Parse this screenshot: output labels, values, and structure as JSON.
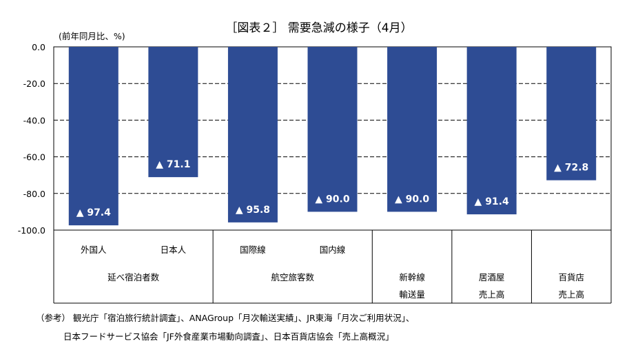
{
  "title": "［図表２］ 需要急減の様子（4月）",
  "unit_label": "(前年同月比、%)",
  "y_ticks": [
    "0.0",
    "-20.0",
    "-40.0",
    "-60.0",
    "-80.0",
    "-100.0"
  ],
  "chart_data": {
    "type": "bar",
    "categories": [
      "外国人",
      "日本人",
      "国際線",
      "国内線",
      "新幹線輸送量",
      "居酒屋売上高",
      "百貨店売上高"
    ],
    "values": [
      -97.4,
      -71.1,
      -95.8,
      -90.0,
      -90.0,
      -91.4,
      -72.8
    ],
    "data_labels": [
      "▲ 97.4",
      "▲ 71.1",
      "▲ 95.8",
      "▲ 90.0",
      "▲ 90.0",
      "▲ 91.4",
      "▲ 72.8"
    ],
    "groups": [
      {
        "label": "延べ宿泊者数",
        "lines": [
          "延べ宿泊者数"
        ]
      },
      {
        "label": "航空旅客数",
        "lines": [
          "航空旅客数"
        ]
      },
      {
        "label": "新幹線輸送量",
        "lines": [
          "新幹線",
          "輸送量"
        ]
      },
      {
        "label": "居酒屋売上高",
        "lines": [
          "居酒屋",
          "売上高"
        ]
      },
      {
        "label": "百貨店売上高",
        "lines": [
          "百貨店",
          "売上高"
        ]
      }
    ],
    "sub_categories": [
      "外国人",
      "日本人",
      "国際線",
      "国内線"
    ],
    "ylim": [
      -100,
      0
    ],
    "bar_color": "#2e4c94",
    "grid": true
  },
  "notes": [
    "（参考） 観光庁「宿泊旅行統計調査」、ANAGroup「月次輸送実績」、JR東海「月次ご利用状況」、",
    "日本フードサービス協会「JF外食産業市場動向調査」、日本百貨店協会「売上高概況」"
  ]
}
